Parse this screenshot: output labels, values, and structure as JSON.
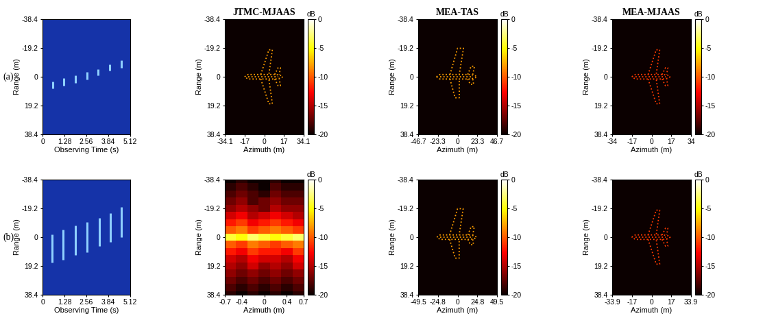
{
  "chart_data": [
    {
      "type": "range_profile",
      "panel_label": "(a)",
      "color": "#8fd0ff",
      "xlabel": "Observing Time (s)",
      "ylabel": "Range (m)",
      "xlim": [
        0,
        5.12
      ],
      "xticks": [
        0,
        1.28,
        2.56,
        3.84,
        5.12
      ],
      "ylim": [
        38.4,
        -38.4
      ],
      "yticks": [
        -38.4,
        -19.2,
        0,
        19.2,
        38.4
      ],
      "streaks": [
        [
          0.6,
          3,
          8
        ],
        [
          1.25,
          1,
          6
        ],
        [
          1.9,
          -1,
          4
        ],
        [
          2.6,
          -3,
          2
        ],
        [
          3.25,
          -5,
          -1
        ],
        [
          3.9,
          -8,
          -4
        ],
        [
          4.6,
          -11,
          -6
        ]
      ]
    },
    {
      "type": "scatterer_image",
      "title": "JTMC-MJAAS",
      "xlabel": "Azimuth (m)",
      "ylabel": "Range (m)",
      "xlim": [
        -34.1,
        34.1
      ],
      "xticks": [
        -34.1,
        -17,
        0,
        17,
        34.1
      ],
      "ylim": [
        38.4,
        -38.4
      ],
      "yticks": [
        -38.4,
        -19.2,
        0,
        19.2,
        38.4
      ],
      "colorbar": {
        "label": "dB",
        "range": [
          -20,
          0
        ],
        "ticks": [
          -20,
          -15,
          -10,
          -5,
          0
        ]
      },
      "level": -8,
      "outline": [
        [
          [
            -17,
            0
          ],
          [
            -14,
            -1.5
          ],
          [
            10,
            -1.5
          ],
          [
            14,
            -1
          ],
          [
            16,
            0
          ],
          [
            14,
            1
          ],
          [
            10,
            1.5
          ],
          [
            -14,
            1.5
          ],
          [
            -17,
            0
          ]
        ],
        [
          [
            -14,
            0
          ],
          [
            12,
            0
          ]
        ],
        [
          [
            -3,
            -1.5
          ],
          [
            4,
            -18
          ],
          [
            7,
            -18
          ],
          [
            4,
            -1.5
          ]
        ],
        [
          [
            -3,
            1.5
          ],
          [
            4,
            18
          ],
          [
            7,
            18
          ],
          [
            4,
            1.5
          ]
        ],
        [
          [
            9,
            -1.5
          ],
          [
            12,
            -6
          ],
          [
            14,
            -6
          ],
          [
            13,
            -1.5
          ]
        ],
        [
          [
            9,
            1.5
          ],
          [
            12,
            6
          ],
          [
            14,
            6
          ],
          [
            13,
            1.5
          ]
        ]
      ]
    },
    {
      "type": "scatterer_image",
      "title": "MEA-TAS",
      "xlabel": "Azimuth (m)",
      "ylabel": "Range (m)",
      "xlim": [
        -46.7,
        46.7
      ],
      "xticks": [
        -46.7,
        -23.3,
        0,
        23.3,
        46.7
      ],
      "ylim": [
        38.4,
        -38.4
      ],
      "yticks": [
        -38.4,
        -19.2,
        0,
        19.2,
        38.4
      ],
      "colorbar": {
        "label": "dB",
        "range": [
          -20,
          0
        ],
        "ticks": [
          -20,
          -15,
          -10,
          -5,
          0
        ]
      },
      "level": -8,
      "outline": [
        [
          [
            -25,
            0
          ],
          [
            -21,
            -1.5
          ],
          [
            14,
            -1.5
          ],
          [
            20,
            -1
          ],
          [
            23,
            0
          ],
          [
            20,
            1
          ],
          [
            14,
            1.5
          ],
          [
            -21,
            1.5
          ],
          [
            -25,
            0
          ]
        ],
        [
          [
            -21,
            0
          ],
          [
            18,
            0
          ]
        ],
        [
          [
            -9,
            -1.5
          ],
          [
            0,
            -19
          ],
          [
            7,
            -19
          ],
          [
            2,
            -1.5
          ]
        ],
        [
          [
            -9,
            1.5
          ],
          [
            -3,
            14
          ],
          [
            2,
            14
          ],
          [
            2,
            1.5
          ]
        ],
        [
          [
            12,
            -1.5
          ],
          [
            16,
            -7
          ],
          [
            20,
            -7
          ],
          [
            18,
            -1.5
          ]
        ],
        [
          [
            12,
            1.5
          ],
          [
            15,
            5
          ],
          [
            19,
            5
          ],
          [
            18,
            1.5
          ]
        ]
      ]
    },
    {
      "type": "scatterer_image",
      "title": "MEA-MJAAS",
      "xlabel": "Azimuth (m)",
      "ylabel": "Range (m)",
      "xlim": [
        -34,
        34
      ],
      "xticks": [
        -34,
        -17,
        0,
        17,
        34
      ],
      "ylim": [
        38.4,
        -38.4
      ],
      "yticks": [
        -38.4,
        -19.2,
        0,
        19.2,
        38.4
      ],
      "colorbar": {
        "label": "dB",
        "range": [
          -20,
          0
        ],
        "ticks": [
          -20,
          -15,
          -10,
          -5,
          0
        ]
      },
      "level": -11,
      "outline": [
        [
          [
            -17,
            0
          ],
          [
            -14,
            -1.5
          ],
          [
            10,
            -1.5
          ],
          [
            14,
            -1
          ],
          [
            16,
            0
          ],
          [
            14,
            1
          ],
          [
            10,
            1.5
          ],
          [
            -14,
            1.5
          ],
          [
            -17,
            0
          ]
        ],
        [
          [
            -14,
            0
          ],
          [
            12,
            0
          ]
        ],
        [
          [
            -3,
            -1.5
          ],
          [
            4,
            -18
          ],
          [
            7,
            -18
          ],
          [
            4,
            -1.5
          ]
        ],
        [
          [
            -3,
            1.5
          ],
          [
            4,
            18
          ],
          [
            7,
            18
          ],
          [
            4,
            1.5
          ]
        ],
        [
          [
            9,
            -1.5
          ],
          [
            12,
            -6
          ],
          [
            14,
            -6
          ],
          [
            13,
            -1.5
          ]
        ],
        [
          [
            9,
            1.5
          ],
          [
            12,
            6
          ],
          [
            14,
            6
          ],
          [
            13,
            1.5
          ]
        ]
      ]
    },
    {
      "type": "range_profile",
      "panel_label": "(b)",
      "color": "#8fd0ff",
      "xlabel": "Observing Time (s)",
      "ylabel": "Range (m)",
      "xlim": [
        0,
        5.12
      ],
      "xticks": [
        0,
        1.28,
        2.56,
        3.84,
        5.12
      ],
      "ylim": [
        38.4,
        -38.4
      ],
      "yticks": [
        -38.4,
        -19.2,
        0,
        19.2,
        38.4
      ],
      "streaks": [
        [
          0.55,
          -2,
          17
        ],
        [
          1.2,
          -5,
          15
        ],
        [
          1.9,
          -8,
          12
        ],
        [
          2.6,
          -10,
          10
        ],
        [
          3.3,
          -13,
          6
        ],
        [
          3.95,
          -16,
          3
        ],
        [
          4.6,
          -20,
          0
        ]
      ]
    },
    {
      "type": "heatmap",
      "xlabel": "Azimuth (m)",
      "ylabel": "Range (m)",
      "xlim": [
        -0.7,
        0.7
      ],
      "xticks": [
        -0.7,
        -0.4,
        0,
        0.4,
        0.7
      ],
      "ylim": [
        38.4,
        -38.4
      ],
      "yticks": [
        -38.4,
        -19.2,
        0,
        19.2,
        38.4
      ],
      "colorbar": {
        "label": "dB",
        "range": [
          -20,
          0
        ],
        "ticks": [
          -20,
          -15,
          -10,
          -5,
          0
        ]
      },
      "cells": {
        "azimuth": [
          -0.6,
          -0.4,
          -0.2,
          0,
          0.2,
          0.4,
          0.6
        ],
        "range": [
          -38.4,
          -33.6,
          -28.8,
          -24,
          -19.2,
          -14.4,
          -9.6,
          -4.8,
          0,
          4.8,
          9.6,
          14.4,
          19.2,
          24,
          28.8,
          33.6,
          38.4
        ],
        "values": [
          [
            -20,
            -19,
            -20,
            -20,
            -19,
            -20,
            -20
          ],
          [
            -19,
            -18,
            -19,
            -20,
            -18,
            -19,
            -19
          ],
          [
            -18,
            -17,
            -18,
            -19,
            -17,
            -18,
            -18
          ],
          [
            -17,
            -16,
            -18,
            -17,
            -16,
            -17,
            -17
          ],
          [
            -16,
            -15,
            -16,
            -17,
            -15,
            -16,
            -16
          ],
          [
            -14,
            -13,
            -15,
            -14,
            -13,
            -14,
            -15
          ],
          [
            -12,
            -11,
            -13,
            -12,
            -11,
            -12,
            -13
          ],
          [
            -10,
            -9,
            -11,
            -10,
            -9,
            -10,
            -11
          ],
          [
            -4,
            -5,
            -3,
            -4,
            -5,
            -4,
            -3
          ],
          [
            -10,
            -11,
            -9,
            -10,
            -11,
            -10,
            -9
          ],
          [
            -12,
            -13,
            -11,
            -12,
            -12,
            -13,
            -11
          ],
          [
            -14,
            -15,
            -13,
            -14,
            -14,
            -15,
            -13
          ],
          [
            -15,
            -16,
            -14,
            -16,
            -15,
            -16,
            -14
          ],
          [
            -16,
            -17,
            -16,
            -17,
            -16,
            -17,
            -16
          ],
          [
            -17,
            -18,
            -17,
            -18,
            -17,
            -18,
            -17
          ],
          [
            -18,
            -19,
            -18,
            -19,
            -18,
            -19,
            -18
          ],
          [
            -19,
            -20,
            -19,
            -20,
            -19,
            -20,
            -19
          ]
        ]
      }
    },
    {
      "type": "scatterer_image",
      "xlabel": "Azimuth (m)",
      "ylabel": "Range (m)",
      "xlim": [
        -49.5,
        49.5
      ],
      "xticks": [
        -49.5,
        -24.8,
        0,
        24.8,
        49.5
      ],
      "ylim": [
        38.4,
        -38.4
      ],
      "yticks": [
        -38.4,
        -19.2,
        0,
        19.2,
        38.4
      ],
      "colorbar": {
        "label": "dB",
        "range": [
          -20,
          0
        ],
        "ticks": [
          -20,
          -15,
          -10,
          -5,
          0
        ]
      },
      "level": -8,
      "outline": [
        [
          [
            -26,
            0
          ],
          [
            -22,
            -1.5
          ],
          [
            15,
            -1.5
          ],
          [
            21,
            -1
          ],
          [
            24,
            0
          ],
          [
            21,
            1
          ],
          [
            15,
            1.5
          ],
          [
            -22,
            1.5
          ],
          [
            -26,
            0
          ]
        ],
        [
          [
            -22,
            0
          ],
          [
            19,
            0
          ]
        ],
        [
          [
            -10,
            -1.5
          ],
          [
            0,
            -19
          ],
          [
            7,
            -19
          ],
          [
            2,
            -1.5
          ]
        ],
        [
          [
            -10,
            1.5
          ],
          [
            -3,
            14
          ],
          [
            2,
            14
          ],
          [
            2,
            1.5
          ]
        ],
        [
          [
            13,
            -1.5
          ],
          [
            17,
            -7
          ],
          [
            21,
            -7
          ],
          [
            19,
            -1.5
          ]
        ],
        [
          [
            13,
            1.5
          ],
          [
            16,
            5
          ],
          [
            20,
            5
          ],
          [
            19,
            1.5
          ]
        ]
      ]
    },
    {
      "type": "scatterer_image",
      "xlabel": "Azimuth (m)",
      "ylabel": "Range (m)",
      "xlim": [
        -33.9,
        33.9
      ],
      "xticks": [
        -33.9,
        -17,
        0,
        17,
        33.9
      ],
      "ylim": [
        38.4,
        -38.4
      ],
      "yticks": [
        -38.4,
        -19.2,
        0,
        19.2,
        38.4
      ],
      "colorbar": {
        "label": "dB",
        "range": [
          -20,
          0
        ],
        "ticks": [
          -20,
          -15,
          -10,
          -5,
          0
        ]
      },
      "level": -11,
      "outline": [
        [
          [
            -17,
            0
          ],
          [
            -14,
            -1.5
          ],
          [
            10,
            -1.5
          ],
          [
            14,
            -1
          ],
          [
            16,
            0
          ],
          [
            14,
            1
          ],
          [
            10,
            1.5
          ],
          [
            -14,
            1.5
          ],
          [
            -17,
            0
          ]
        ],
        [
          [
            -14,
            0
          ],
          [
            12,
            0
          ]
        ],
        [
          [
            -3,
            -1.5
          ],
          [
            4,
            -18
          ],
          [
            7,
            -18
          ],
          [
            4,
            -1.5
          ]
        ],
        [
          [
            -3,
            1.5
          ],
          [
            4,
            18
          ],
          [
            7,
            18
          ],
          [
            4,
            1.5
          ]
        ],
        [
          [
            9,
            -1.5
          ],
          [
            12,
            -6
          ],
          [
            14,
            -6
          ],
          [
            13,
            -1.5
          ]
        ],
        [
          [
            9,
            1.5
          ],
          [
            12,
            6
          ],
          [
            14,
            6
          ],
          [
            13,
            1.5
          ]
        ]
      ]
    }
  ]
}
